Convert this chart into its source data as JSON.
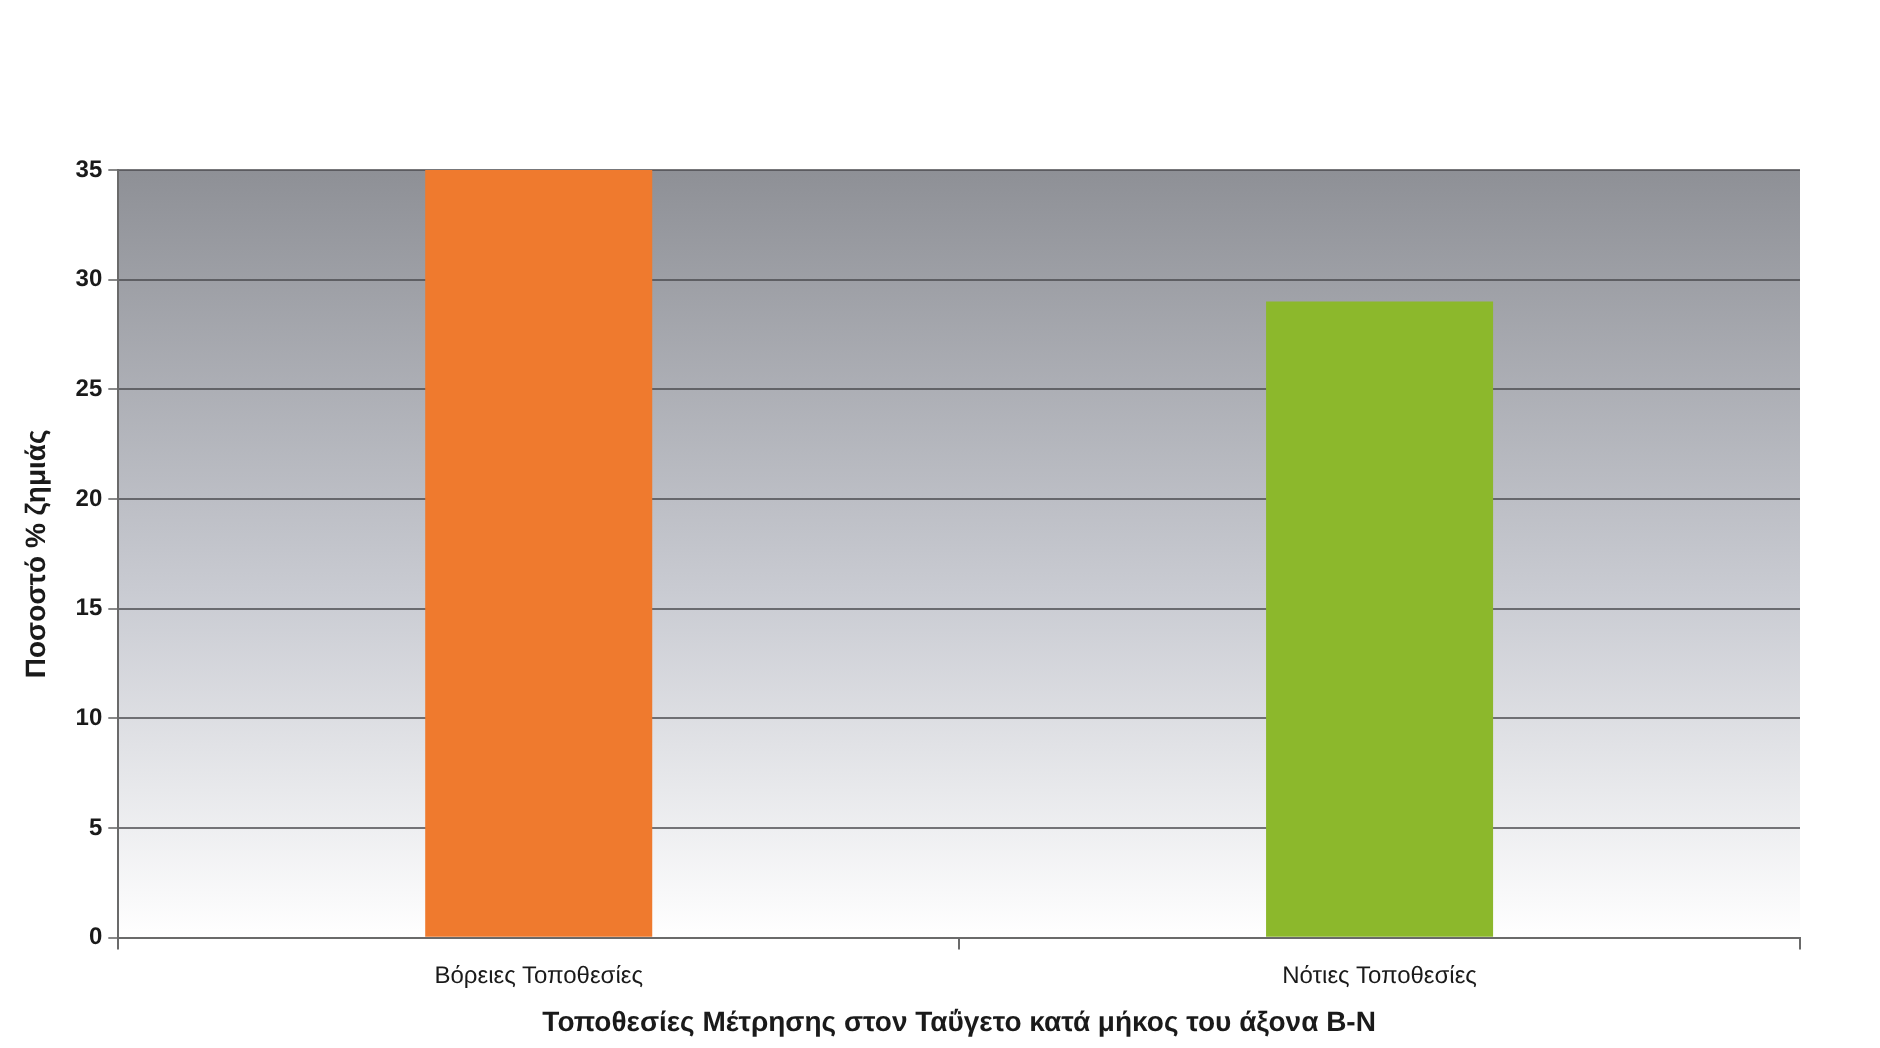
{
  "chart_data": {
    "type": "bar",
    "categories": [
      "Βόρειες Τοποθεσίες",
      "Νότιες Τοποθεσίες"
    ],
    "values": [
      35,
      29
    ],
    "colors": [
      "#ef7a2e",
      "#8cb82c"
    ],
    "ylim": [
      0,
      35
    ],
    "yticks": [
      0,
      5,
      10,
      15,
      20,
      25,
      30,
      35
    ],
    "xlabel": "Τοποθεσίες Μέτρησης στον Ταΰγετο κατά μήκος του άξονα Β-Ν",
    "ylabel": "Ποσοστό % ζημιάς",
    "grid": "y"
  }
}
